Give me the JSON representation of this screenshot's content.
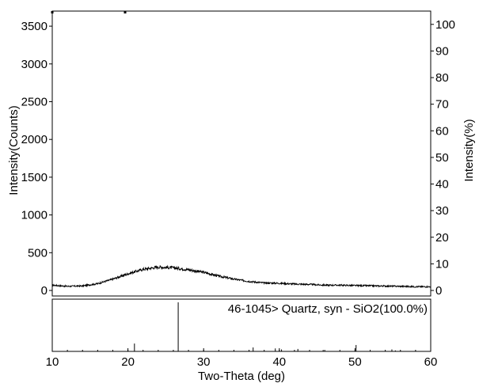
{
  "chart_data": [
    {
      "type": "line",
      "xlabel": "Two-Theta (deg)",
      "ylabel": "Intensity(Counts)",
      "y2label": "Intensity(%)",
      "xlim": [
        10,
        60
      ],
      "ylim": [
        0,
        3700
      ],
      "y2lim": [
        0,
        105
      ],
      "x_ticks": [
        10,
        20,
        30,
        40,
        50,
        60
      ],
      "y_ticks": [
        0,
        500,
        1000,
        1500,
        2000,
        2500,
        3000,
        3500
      ],
      "y2_ticks": [
        0,
        10,
        20,
        30,
        40,
        50,
        60,
        70,
        80,
        90,
        100
      ],
      "grid": false,
      "series": [
        {
          "values_note": "noisy XRD pattern, amorphous hump",
          "x": [
            10,
            12,
            14,
            16,
            18,
            20,
            22,
            24,
            26,
            28,
            30,
            32,
            34,
            36,
            38,
            40,
            42,
            44,
            46,
            48,
            50,
            52,
            54,
            56,
            58,
            60
          ],
          "y": [
            70,
            55,
            60,
            90,
            150,
            220,
            280,
            310,
            300,
            275,
            240,
            190,
            150,
            120,
            100,
            95,
            85,
            80,
            70,
            70,
            65,
            62,
            58,
            55,
            50,
            50
          ]
        }
      ],
      "color": "#000000"
    },
    {
      "type": "bar",
      "label": "46-1045> Quartz, syn - SiO2(100.0%)",
      "xlim": [
        10,
        60
      ],
      "ylim": [
        0,
        100
      ],
      "x": [
        20.86,
        26.64,
        36.54,
        39.47,
        40.29,
        42.45,
        45.79,
        50.14,
        54.87,
        55.33
      ],
      "values": [
        16,
        100,
        8,
        6,
        4,
        5,
        3,
        13,
        4,
        2
      ],
      "color": "#000000"
    }
  ]
}
